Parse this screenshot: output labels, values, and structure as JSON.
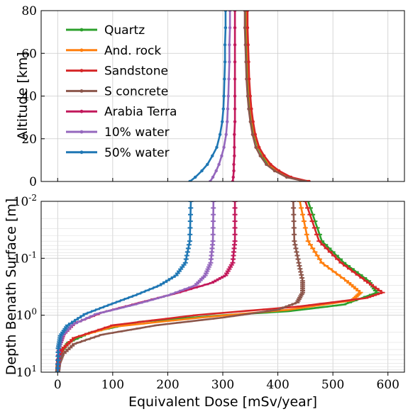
{
  "chart_data": [
    {
      "type": "line",
      "title": "",
      "ylabel": "Altitude [km]",
      "xlabel": "",
      "xlim": [
        -30,
        630
      ],
      "ylim": [
        0,
        80
      ],
      "yticks": [
        0,
        20,
        40,
        60,
        80
      ],
      "ytick_labels": [
        "0",
        "20",
        "40",
        "60",
        "80"
      ],
      "grid": true,
      "legend": "top-left",
      "series": [
        {
          "name": "Quartz",
          "color": "#2ca02c",
          "x": [
            453,
            420,
            398,
            383,
            372,
            364,
            357,
            353,
            350,
            348,
            346,
            345,
            344,
            343,
            343
          ],
          "y": [
            0,
            2,
            5,
            8,
            12,
            16,
            22,
            28,
            34,
            40,
            48,
            56,
            64,
            72,
            80
          ]
        },
        {
          "name": "And. rock",
          "color": "#ff7f0e",
          "x": [
            455,
            422,
            400,
            385,
            374,
            365,
            358,
            354,
            351,
            349,
            347,
            346,
            345,
            344,
            344
          ],
          "y": [
            0,
            2,
            5,
            8,
            12,
            16,
            22,
            28,
            34,
            40,
            48,
            56,
            64,
            72,
            80
          ]
        },
        {
          "name": "Sandstone",
          "color": "#d62728",
          "x": [
            457,
            424,
            402,
            387,
            375,
            366,
            359,
            355,
            352,
            350,
            348,
            347,
            346,
            345,
            345
          ],
          "y": [
            0,
            2,
            5,
            8,
            12,
            16,
            22,
            28,
            34,
            40,
            48,
            56,
            64,
            72,
            80
          ]
        },
        {
          "name": "S concrete",
          "color": "#8c564b",
          "x": [
            450,
            416,
            394,
            379,
            368,
            360,
            354,
            350,
            347,
            345,
            343,
            342,
            341,
            340,
            340
          ],
          "y": [
            0,
            2,
            5,
            8,
            12,
            16,
            22,
            28,
            34,
            40,
            48,
            56,
            64,
            72,
            80
          ]
        },
        {
          "name": "Arabia Terra",
          "color": "#c2185b",
          "x": [
            318,
            319,
            320,
            320,
            321,
            321,
            321,
            322,
            322,
            322,
            322,
            322,
            322,
            322,
            322
          ],
          "y": [
            0,
            2,
            5,
            8,
            12,
            16,
            22,
            28,
            34,
            40,
            48,
            56,
            64,
            72,
            80
          ]
        },
        {
          "name": "10% water",
          "color": "#9467bd",
          "x": [
            277,
            282,
            288,
            293,
            298,
            302,
            306,
            308,
            309,
            310,
            311,
            312,
            312,
            313,
            313
          ],
          "y": [
            0,
            2,
            5,
            8,
            12,
            16,
            22,
            28,
            34,
            40,
            48,
            56,
            64,
            72,
            80
          ]
        },
        {
          "name": "50% water",
          "color": "#1f77b4",
          "x": [
            240,
            250,
            262,
            272,
            281,
            289,
            295,
            299,
            301,
            302,
            303,
            304,
            304,
            305,
            305
          ],
          "y": [
            0,
            2,
            5,
            8,
            12,
            16,
            22,
            28,
            34,
            40,
            48,
            56,
            64,
            72,
            80
          ]
        }
      ]
    },
    {
      "type": "line",
      "title": "",
      "ylabel": "Depth Benath Surface [m]",
      "xlabel": "Equivalent Dose [mSv/year]",
      "xlim": [
        -30,
        630
      ],
      "xticks": [
        0,
        100,
        200,
        300,
        400,
        500,
        600
      ],
      "xtick_labels": [
        "0",
        "100",
        "200",
        "300",
        "400",
        "500",
        "600"
      ],
      "ylim": [
        0.01,
        10
      ],
      "yscale": "log",
      "yinverted": true,
      "ytick_labels": [
        "10^-2",
        "10^-1",
        "10^0",
        "10^1"
      ],
      "grid": true,
      "series": [
        {
          "name": "Quartz",
          "color": "#2ca02c",
          "x": [
            455,
            480,
            520,
            565,
            580,
            520,
            420,
            300,
            150,
            60,
            20,
            5,
            1,
            0
          ],
          "y": [
            0.01,
            0.05,
            0.12,
            0.25,
            0.4,
            0.65,
            0.85,
            1.0,
            1.3,
            2.0,
            3.0,
            4.5,
            7.0,
            10.0
          ]
        },
        {
          "name": "And. rock",
          "color": "#ff7f0e",
          "x": [
            440,
            455,
            480,
            525,
            550,
            535,
            420,
            260,
            100,
            30,
            8,
            2,
            0
          ],
          "y": [
            0.01,
            0.05,
            0.12,
            0.25,
            0.4,
            0.55,
            0.8,
            1.1,
            1.6,
            2.5,
            4.0,
            6.0,
            10.0
          ]
        },
        {
          "name": "Sandstone",
          "color": "#d62728",
          "x": [
            450,
            475,
            515,
            560,
            590,
            560,
            440,
            250,
            100,
            30,
            8,
            2,
            0
          ],
          "y": [
            0.01,
            0.05,
            0.12,
            0.25,
            0.4,
            0.5,
            0.7,
            1.0,
            1.5,
            2.5,
            4.0,
            6.0,
            10.0
          ]
        },
        {
          "name": "S concrete",
          "color": "#8c564b",
          "x": [
            428,
            430,
            438,
            445,
            445,
            435,
            400,
            300,
            180,
            80,
            30,
            8,
            2,
            0
          ],
          "y": [
            0.01,
            0.05,
            0.12,
            0.25,
            0.4,
            0.6,
            0.8,
            1.1,
            1.5,
            2.2,
            3.2,
            5.0,
            7.0,
            10.0
          ]
        },
        {
          "name": "Arabia Terra",
          "color": "#c2185b",
          "x": [
            322,
            322,
            318,
            305,
            280,
            220,
            150,
            80,
            30,
            10,
            3,
            0
          ],
          "y": [
            0.01,
            0.05,
            0.12,
            0.2,
            0.27,
            0.4,
            0.6,
            0.9,
            1.4,
            2.2,
            3.5,
            10.0
          ]
        },
        {
          "name": "10% water",
          "color": "#9467bd",
          "x": [
            283,
            282,
            278,
            268,
            250,
            200,
            140,
            70,
            25,
            8,
            2,
            0
          ],
          "y": [
            0.01,
            0.05,
            0.12,
            0.2,
            0.3,
            0.45,
            0.65,
            0.95,
            1.5,
            2.3,
            3.8,
            10.0
          ]
        },
        {
          "name": "50% water",
          "color": "#1f77b4",
          "x": [
            242,
            240,
            232,
            215,
            185,
            140,
            95,
            50,
            18,
            5,
            1,
            0
          ],
          "y": [
            0.01,
            0.05,
            0.12,
            0.2,
            0.3,
            0.45,
            0.65,
            0.95,
            1.5,
            2.3,
            3.8,
            10.0
          ]
        }
      ]
    }
  ]
}
